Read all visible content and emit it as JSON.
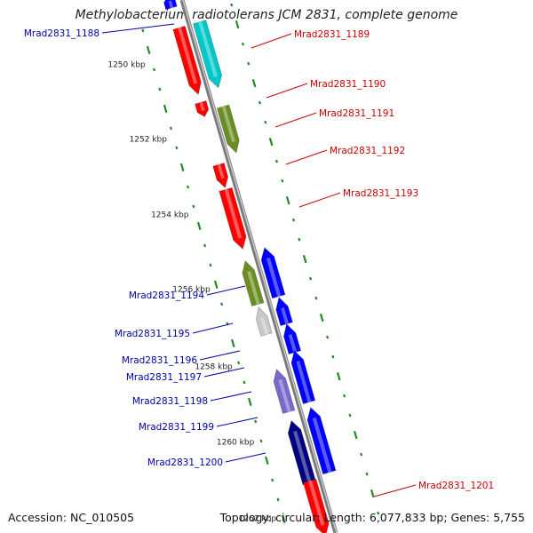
{
  "title": "Methylobacterium radiotolerans JCM 2831, complete genome",
  "footer": {
    "accession": "Accession: NC_010505",
    "stats": "Topology: circular; Length: 6,077,833 bp; Genes: 5,755"
  },
  "ruler": {
    "labels": [
      "1250 kbp",
      "1252 kbp",
      "1254 kbp",
      "1256 kbp",
      "1258 kbp",
      "1260 kbp",
      "1262 kbp"
    ]
  },
  "colors": {
    "red": "#ff0000",
    "cyan": "#00c8c8",
    "olive": "#6b8e23",
    "blue": "#0000ff",
    "gray": "#c8c8c8",
    "slate": "#7b68cc",
    "navy": "#000080",
    "label_forward": "#cc0000",
    "label_reverse": "#0000aa",
    "tick": "#228b22"
  },
  "genes": [
    {
      "id": "Mrad2831_1188",
      "strand": "reverse",
      "color": "blue"
    },
    {
      "id": "Mrad2831_1189",
      "strand": "forward",
      "color": "cyan"
    },
    {
      "id": "Mrad2831_1190",
      "strand": "forward",
      "color": "red"
    },
    {
      "id": "Mrad2831_1191",
      "strand": "forward",
      "color": "olive"
    },
    {
      "id": "Mrad2831_1192",
      "strand": "forward",
      "color": "red"
    },
    {
      "id": "Mrad2831_1193",
      "strand": "forward",
      "color": "red"
    },
    {
      "id": "Mrad2831_1194",
      "strand": "reverse",
      "color": "olive"
    },
    {
      "id": "Mrad2831_1195",
      "strand": "reverse",
      "color": "gray"
    },
    {
      "id": "Mrad2831_1196",
      "strand": "reverse",
      "color": "blue"
    },
    {
      "id": "Mrad2831_1197",
      "strand": "reverse",
      "color": "blue"
    },
    {
      "id": "Mrad2831_1198",
      "strand": "reverse",
      "color": "slate"
    },
    {
      "id": "Mrad2831_1199",
      "strand": "reverse",
      "color": "blue"
    },
    {
      "id": "Mrad2831_1200",
      "strand": "reverse",
      "color": "navy"
    },
    {
      "id": "Mrad2831_1201",
      "strand": "forward",
      "color": "red"
    }
  ]
}
